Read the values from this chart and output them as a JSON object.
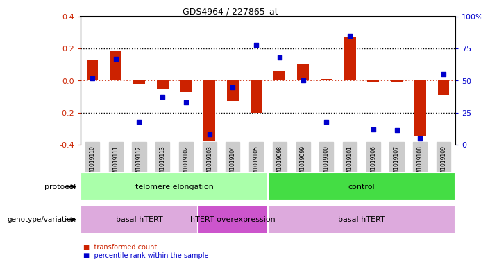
{
  "title": "GDS4964 / 227865_at",
  "samples": [
    "GSM1019110",
    "GSM1019111",
    "GSM1019112",
    "GSM1019113",
    "GSM1019102",
    "GSM1019103",
    "GSM1019104",
    "GSM1019105",
    "GSM1019098",
    "GSM1019099",
    "GSM1019100",
    "GSM1019101",
    "GSM1019106",
    "GSM1019107",
    "GSM1019108",
    "GSM1019109"
  ],
  "transformed_count": [
    0.13,
    0.19,
    -0.02,
    -0.05,
    -0.07,
    -0.38,
    -0.13,
    -0.2,
    0.06,
    0.1,
    0.01,
    0.27,
    -0.01,
    -0.01,
    -0.35,
    -0.09
  ],
  "percentile_rank_pct": [
    52,
    67,
    18,
    37,
    33,
    8,
    45,
    78,
    68,
    50,
    18,
    85,
    12,
    11,
    5,
    55
  ],
  "protocol_groups": [
    {
      "label": "telomere elongation",
      "start": 0,
      "end": 8,
      "color": "#aaffaa"
    },
    {
      "label": "control",
      "start": 8,
      "end": 16,
      "color": "#44dd44"
    }
  ],
  "genotype_groups": [
    {
      "label": "basal hTERT",
      "start": 0,
      "end": 5,
      "color": "#ddaadd"
    },
    {
      "label": "hTERT overexpression",
      "start": 5,
      "end": 8,
      "color": "#cc55cc"
    },
    {
      "label": "basal hTERT",
      "start": 8,
      "end": 16,
      "color": "#ddaadd"
    }
  ],
  "bar_color": "#cc2200",
  "dot_color": "#0000cc",
  "ylim": [
    -0.4,
    0.4
  ],
  "yticks_left": [
    -0.4,
    -0.2,
    0.0,
    0.2,
    0.4
  ],
  "yticks_right": [
    0,
    25,
    50,
    75,
    100
  ],
  "xticklabel_bg": "#cccccc"
}
